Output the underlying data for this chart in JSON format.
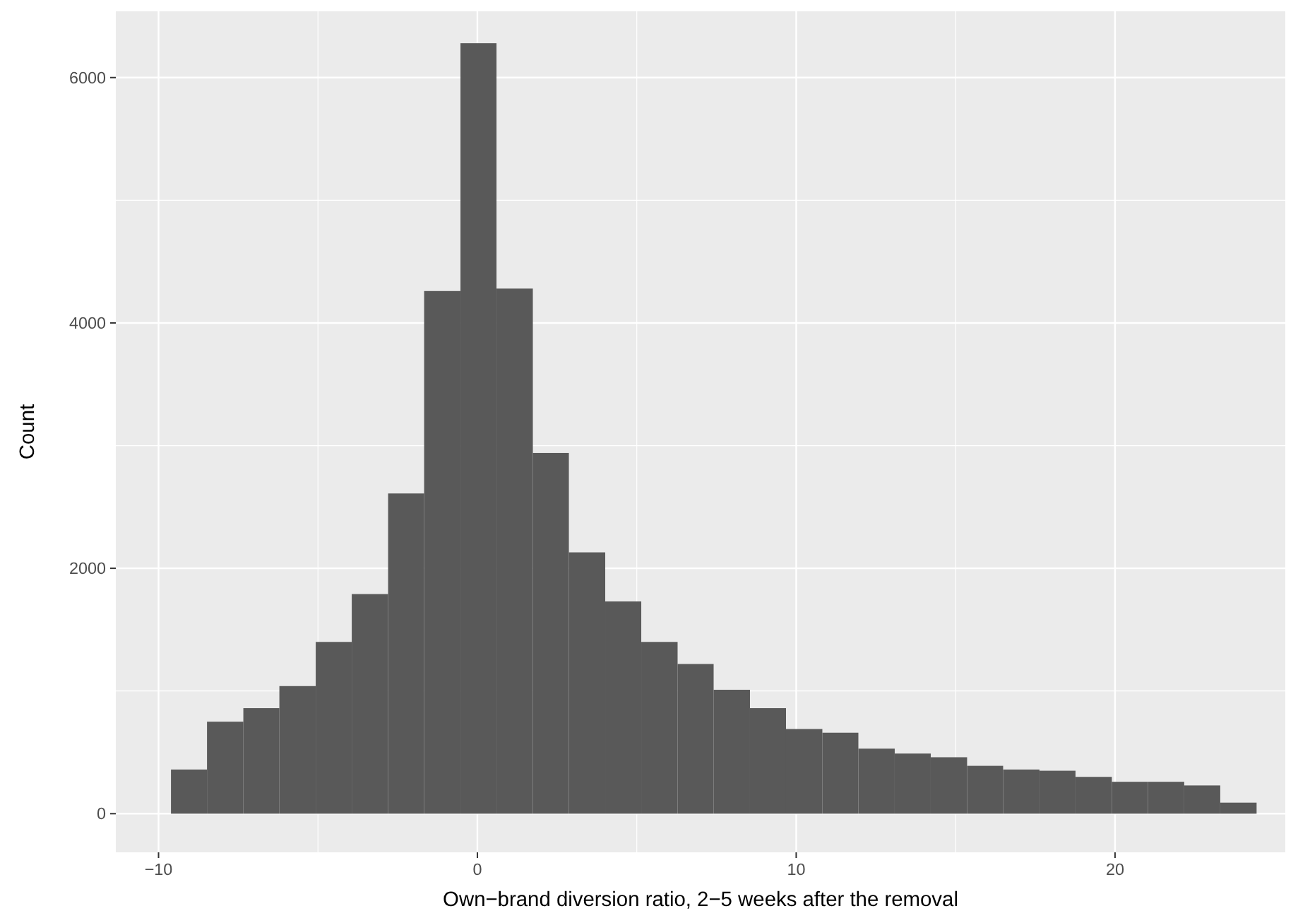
{
  "chart_data": {
    "type": "histogram",
    "xlabel": "Own−brand diversion ratio, 2−5 weeks after the removal",
    "ylabel": "Count",
    "bins": [
      -9.61,
      -8.48,
      -7.34,
      -6.21,
      -5.07,
      -3.94,
      -2.8,
      -1.67,
      -0.53,
      0.6,
      1.74,
      2.87,
      4.01,
      5.14,
      6.28,
      7.41,
      8.55,
      9.68,
      10.82,
      11.95,
      13.09,
      14.22,
      15.36,
      16.49,
      17.63,
      18.76,
      19.9,
      21.03,
      22.17,
      23.3,
      24.44
    ],
    "values": [
      360,
      750,
      860,
      1040,
      1400,
      1790,
      2610,
      4260,
      6280,
      4280,
      2940,
      2130,
      1730,
      1400,
      1220,
      1010,
      860,
      690,
      660,
      530,
      490,
      460,
      390,
      360,
      350,
      300,
      260,
      260,
      230,
      90
    ],
    "color": "#595959",
    "xlim": [
      -11.34,
      25.34
    ],
    "ylim": [
      -315,
      6540
    ],
    "xticks": [
      {
        "value": -10,
        "label": "−10"
      },
      0,
      10,
      20
    ],
    "yticks": [
      0,
      2000,
      4000,
      6000
    ],
    "grid": true
  }
}
